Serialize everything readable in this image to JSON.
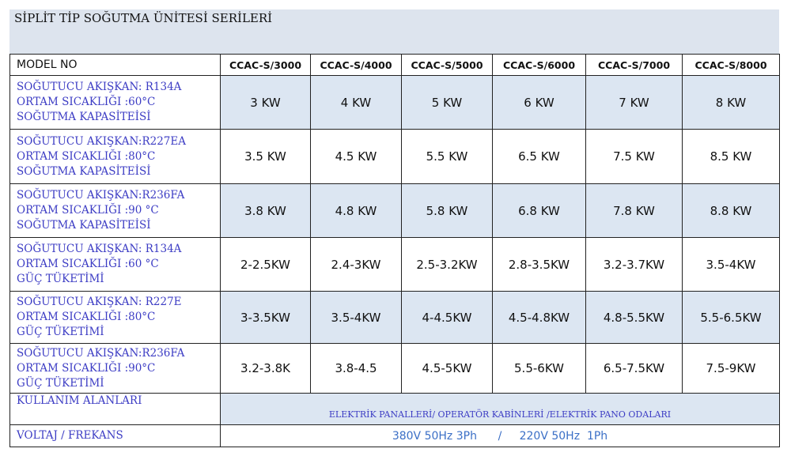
{
  "header": {
    "title": "SİPLİT TİP SOĞUTMA ÜNİTESİ SERİLERİ"
  },
  "table": {
    "columns": [
      "MODEL NO",
      "CCAC-S/3000",
      "CCAC-S/4000",
      "CCAC-S/5000",
      "CCAC-S/6000",
      "CCAC-S/7000",
      "CCAC-S/8000"
    ],
    "rows": [
      {
        "label": [
          "SOĞUTUCU AKIŞKAN: R134A",
          "ORTAM SICAKLIĞI :60°C",
          "SOĞUTMA KAPASİTEİSİ"
        ],
        "values": [
          "3 KW",
          "4 KW",
          "5 KW",
          "6 KW",
          "7 KW",
          "8 KW"
        ]
      },
      {
        "label": [
          "SOĞUTUCU AKIŞKAN:R227EA",
          "ORTAM SICAKLIĞI :80°C",
          "SOĞUTMA KAPASİTEİSİ"
        ],
        "values": [
          "3.5 KW",
          "4.5 KW",
          "5.5 KW",
          "6.5 KW",
          "7.5 KW",
          "8.5 KW"
        ]
      },
      {
        "label": [
          "SOĞUTUCU AKIŞKAN:R236FA",
          "ORTAM SICAKLIĞI :90 °C",
          "SOĞUTMA KAPASİTEİSİ"
        ],
        "values": [
          "3.8 KW",
          "4.8 KW",
          "5.8 KW",
          "6.8 KW",
          "7.8 KW",
          "8.8 KW"
        ]
      },
      {
        "label": [
          "SOĞUTUCU AKIŞKAN: R134A",
          "ORTAM SICAKLIĞI :60 °C",
          "GÜÇ TÜKETİMİ"
        ],
        "values": [
          "2-2.5KW",
          "2.4-3KW",
          "2.5-3.2KW",
          "2.8-3.5KW",
          "3.2-3.7KW",
          "3.5-4KW"
        ]
      },
      {
        "label": [
          "SOĞUTUCU AKIŞKAN: R227E",
          "ORTAM SICAKLIĞI :80°C",
          "GÜÇ TÜKETİMİ"
        ],
        "values": [
          "3-3.5KW",
          "3.5-4KW",
          "4-4.5KW",
          "4.5-4.8KW",
          "4.8-5.5KW",
          "5.5-6.5KW"
        ]
      },
      {
        "label": [
          "SOĞUTUCU AKIŞKAN:R236FA",
          "ORTAM SICAKLIĞI :90°C",
          "GÜÇ TÜKETİMİ"
        ],
        "values": [
          "3.2-3.8K",
          "3.8-4.5",
          "4.5-5KW",
          "5.5-6KW",
          "6.5-7.5KW",
          "7.5-9KW"
        ]
      }
    ],
    "usage": {
      "label": "KULLANIM ALANLARI",
      "value": "ELEKTRİK PANALLERİ/ OPERATÖR KABİNLERİ /ELEKTRİK  PANO ODALARI"
    },
    "voltage": {
      "label": "VOLTAJ / FREKANS",
      "value": "380V 50Hz 3Ph      /     220V 50Hz  1Ph"
    }
  }
}
